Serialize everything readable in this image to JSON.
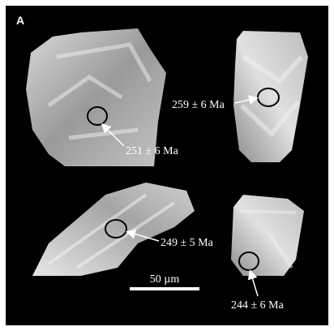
{
  "panel_label": "A",
  "annotations": [
    "251 ± 6 Ma",
    "259 ± 6 Ma",
    "249 ± 5 Ma",
    "244 ± 6 Ma"
  ],
  "scale_bar": "50 µm"
}
